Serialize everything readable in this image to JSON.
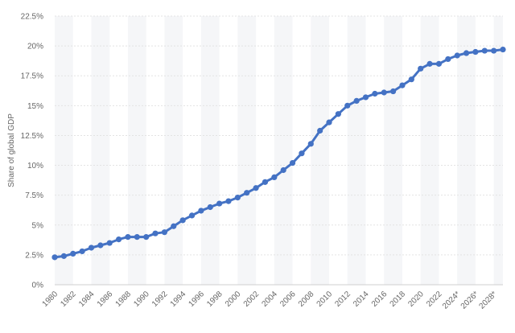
{
  "chart_data": {
    "type": "line",
    "title": "",
    "xlabel": "",
    "ylabel": "Share of global GDP",
    "ylim": [
      0,
      22.5
    ],
    "yticks": [
      "0%",
      "2.5%",
      "5%",
      "7.5%",
      "10%",
      "12.5%",
      "15%",
      "17.5%",
      "20%",
      "22.5%"
    ],
    "xticks": [
      "1980",
      "1982",
      "1984",
      "1986",
      "1988",
      "1990",
      "1992",
      "1994",
      "1996",
      "1998",
      "2000",
      "2002",
      "2004",
      "2006",
      "2008",
      "2010",
      "2012",
      "2014",
      "2016",
      "2018",
      "2020",
      "2022",
      "2024*",
      "2026*",
      "2028*"
    ],
    "grid": true,
    "legend": "none",
    "color": "#4472c4",
    "band_color": "#f5f6f8",
    "series": [
      {
        "x": [
          1980,
          1981,
          1982,
          1983,
          1984,
          1985,
          1986,
          1987,
          1988,
          1989,
          1990,
          1991,
          1992,
          1993,
          1994,
          1995,
          1996,
          1997,
          1998,
          1999,
          2000,
          2001,
          2002,
          2003,
          2004,
          2005,
          2006,
          2007,
          2008,
          2009,
          2010,
          2011,
          2012,
          2013,
          2014,
          2015,
          2016,
          2017,
          2018,
          2019,
          2020,
          2021,
          2022,
          2023,
          2024,
          2025,
          2026,
          2027,
          2028,
          2029
        ],
        "values": [
          2.3,
          2.4,
          2.6,
          2.8,
          3.1,
          3.3,
          3.5,
          3.8,
          4.0,
          4.0,
          4.0,
          4.3,
          4.4,
          4.9,
          5.4,
          5.8,
          6.2,
          6.5,
          6.8,
          7.0,
          7.3,
          7.7,
          8.1,
          8.6,
          9.0,
          9.6,
          10.2,
          11.0,
          11.8,
          12.9,
          13.6,
          14.3,
          15.0,
          15.4,
          15.7,
          16.0,
          16.1,
          16.2,
          16.7,
          17.2,
          18.1,
          18.5,
          18.5,
          18.9,
          19.2,
          19.4,
          19.5,
          19.6,
          19.6,
          19.7
        ]
      }
    ]
  }
}
